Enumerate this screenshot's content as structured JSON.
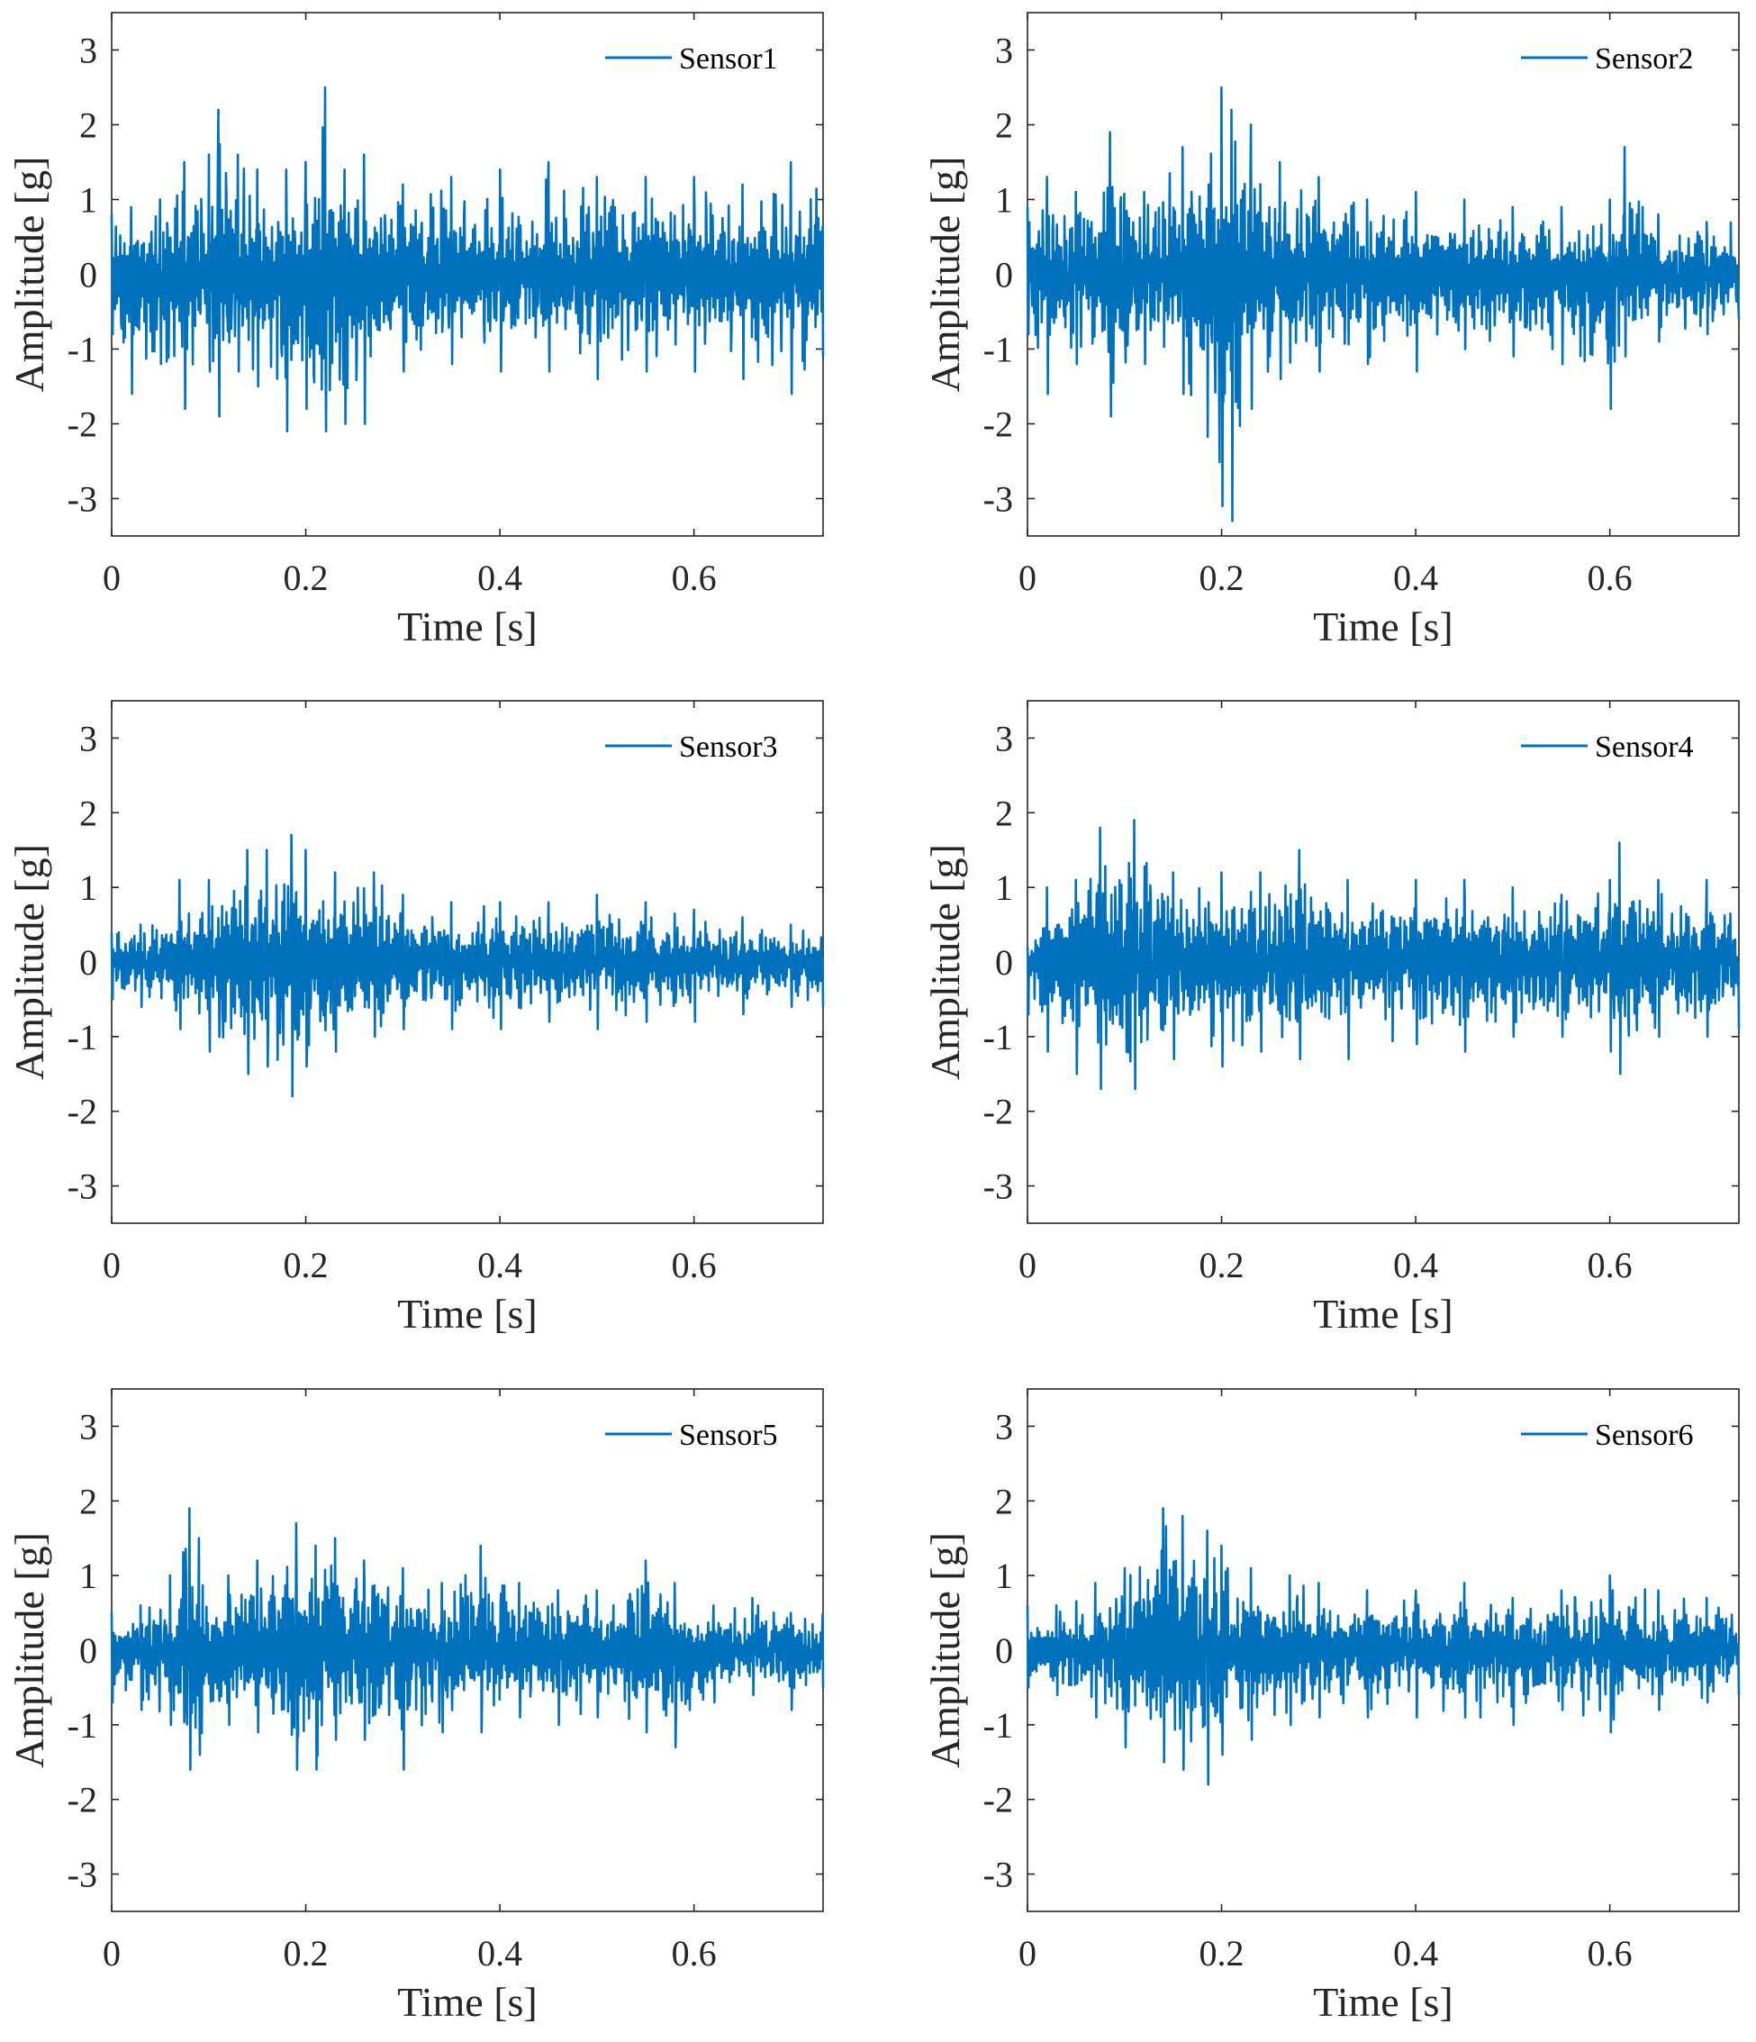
{
  "chart_data": [
    {
      "type": "line",
      "title": "",
      "xlabel": "Time [s]",
      "ylabel": "Amplitude [g]",
      "xlim": [
        0,
        0.733
      ],
      "ylim": [
        -3.5,
        3.5
      ],
      "xticks": [
        "0",
        "0.2",
        "0.4",
        "0.6"
      ],
      "yticks": [
        "3",
        "2",
        "1",
        "0",
        "-1",
        "-2",
        "-3"
      ],
      "legend": "top-right",
      "grid": false,
      "series": [
        {
          "name": "Sensor1",
          "color": "#0072BD",
          "x": [
            0,
            0.02,
            0.05,
            0.075,
            0.1,
            0.11,
            0.13,
            0.15,
            0.18,
            0.2,
            0.22,
            0.24,
            0.26,
            0.3,
            0.35,
            0.4,
            0.45,
            0.5,
            0.55,
            0.6,
            0.65,
            0.7,
            0.733
          ],
          "peak": [
            0.8,
            0.9,
            1.0,
            1.5,
            1.6,
            2.2,
            1.6,
            1.4,
            1.4,
            1.5,
            2.5,
            1.4,
            1.6,
            1.2,
            1.3,
            1.4,
            1.5,
            1.3,
            1.3,
            1.3,
            1.2,
            1.5,
            1.6
          ],
          "trough": [
            -0.8,
            -1.6,
            -1.2,
            -1.8,
            -1.3,
            -1.9,
            -1.3,
            -1.5,
            -2.1,
            -1.8,
            -2.1,
            -2.0,
            -2.0,
            -1.3,
            -1.2,
            -1.3,
            -1.3,
            -1.4,
            -1.3,
            -1.3,
            -1.4,
            -1.6,
            -1.1
          ]
        }
      ]
    },
    {
      "type": "line",
      "title": "",
      "xlabel": "Time [s]",
      "ylabel": "Amplitude [g]",
      "xlim": [
        0,
        0.733
      ],
      "ylim": [
        -3.5,
        3.5
      ],
      "xticks": [
        "0",
        "0.2",
        "0.4",
        "0.6"
      ],
      "yticks": [
        "3",
        "2",
        "1",
        "0",
        "-1",
        "-2",
        "-3"
      ],
      "legend": "top-right",
      "grid": false,
      "series": [
        {
          "name": "Sensor2",
          "color": "#0072BD",
          "x": [
            0,
            0.02,
            0.05,
            0.085,
            0.12,
            0.16,
            0.2,
            0.21,
            0.23,
            0.26,
            0.3,
            0.35,
            0.4,
            0.45,
            0.5,
            0.55,
            0.6,
            0.615,
            0.65,
            0.7,
            0.733
          ],
          "peak": [
            0.9,
            1.3,
            1.1,
            1.9,
            1.1,
            1.7,
            2.5,
            2.2,
            2.0,
            1.5,
            1.3,
            1.0,
            1.1,
            1.0,
            0.9,
            0.9,
            1.0,
            1.7,
            0.8,
            0.7,
            0.8
          ],
          "trough": [
            -0.8,
            -1.6,
            -1.2,
            -1.9,
            -1.2,
            -1.6,
            -3.1,
            -3.3,
            -1.8,
            -1.4,
            -1.3,
            -1.2,
            -1.3,
            -1.0,
            -1.1,
            -1.2,
            -1.8,
            -1.1,
            -0.9,
            -0.8,
            -0.6
          ]
        }
      ]
    },
    {
      "type": "line",
      "title": "",
      "xlabel": "Time [s]",
      "ylabel": "Amplitude [g]",
      "xlim": [
        0,
        0.733
      ],
      "ylim": [
        -3.5,
        3.5
      ],
      "xticks": [
        "0",
        "0.2",
        "0.4",
        "0.6"
      ],
      "yticks": [
        "3",
        "2",
        "1",
        "0",
        "-1",
        "-2",
        "-3"
      ],
      "legend": "top-right",
      "grid": false,
      "series": [
        {
          "name": "Sensor3",
          "color": "#0072BD",
          "x": [
            0,
            0.03,
            0.07,
            0.1,
            0.14,
            0.16,
            0.185,
            0.2,
            0.23,
            0.27,
            0.3,
            0.35,
            0.4,
            0.45,
            0.5,
            0.55,
            0.6,
            0.65,
            0.7,
            0.733
          ],
          "peak": [
            0.4,
            0.5,
            1.1,
            1.1,
            1.5,
            1.5,
            1.7,
            1.5,
            1.2,
            1.2,
            0.9,
            0.8,
            0.8,
            0.8,
            0.9,
            0.8,
            0.7,
            0.6,
            0.5,
            0.5
          ],
          "trough": [
            -0.5,
            -0.6,
            -0.9,
            -1.2,
            -1.5,
            -1.4,
            -1.8,
            -1.4,
            -1.2,
            -1.0,
            -0.9,
            -0.9,
            -0.9,
            -0.8,
            -0.9,
            -0.8,
            -0.8,
            -0.7,
            -0.6,
            -0.6
          ]
        }
      ]
    },
    {
      "type": "line",
      "title": "",
      "xlabel": "Time [s]",
      "ylabel": "Amplitude [g]",
      "xlim": [
        0,
        0.733
      ],
      "ylim": [
        -3.5,
        3.5
      ],
      "xticks": [
        "0",
        "0.2",
        "0.4",
        "0.6"
      ],
      "yticks": [
        "3",
        "2",
        "1",
        "0",
        "-1",
        "-2",
        "-3"
      ],
      "legend": "top-right",
      "grid": false,
      "series": [
        {
          "name": "Sensor4",
          "color": "#0072BD",
          "x": [
            0,
            0.02,
            0.05,
            0.075,
            0.11,
            0.15,
            0.2,
            0.24,
            0.28,
            0.33,
            0.4,
            0.45,
            0.5,
            0.55,
            0.6,
            0.61,
            0.65,
            0.7,
            0.733
          ],
          "peak": [
            0.2,
            1.0,
            1.1,
            1.8,
            1.9,
            1.2,
            1.2,
            1.2,
            1.5,
            1.1,
            1.1,
            1.1,
            1.0,
            0.9,
            1.1,
            1.6,
            1.1,
            1.1,
            1.1
          ],
          "trough": [
            -0.7,
            -1.2,
            -1.5,
            -1.7,
            -1.7,
            -1.3,
            -1.4,
            -1.2,
            -1.3,
            -1.3,
            -1.1,
            -1.2,
            -1.0,
            -1.0,
            -1.2,
            -1.5,
            -1.0,
            -1.0,
            -0.9
          ]
        }
      ]
    },
    {
      "type": "line",
      "title": "",
      "xlabel": "Time [s]",
      "ylabel": "Amplitude [g]",
      "xlim": [
        0,
        0.733
      ],
      "ylim": [
        -3.5,
        3.5
      ],
      "xticks": [
        "0",
        "0.2",
        "0.4",
        "0.6"
      ],
      "yticks": [
        "3",
        "2",
        "1",
        "0",
        "-1",
        "-2",
        "-3"
      ],
      "legend": "top-right",
      "grid": false,
      "series": [
        {
          "name": "Sensor5",
          "color": "#0072BD",
          "x": [
            0,
            0.03,
            0.06,
            0.08,
            0.09,
            0.12,
            0.15,
            0.19,
            0.21,
            0.23,
            0.26,
            0.3,
            0.34,
            0.38,
            0.42,
            0.46,
            0.5,
            0.55,
            0.58,
            0.62,
            0.66,
            0.7,
            0.733
          ],
          "peak": [
            0.5,
            0.6,
            1.0,
            1.9,
            1.5,
            1.0,
            1.2,
            1.7,
            1.4,
            1.5,
            1.2,
            1.1,
            0.9,
            1.4,
            0.9,
            0.8,
            0.8,
            1.2,
            0.9,
            0.6,
            0.7,
            0.5,
            0.6
          ],
          "trough": [
            -0.7,
            -0.8,
            -1.0,
            -1.6,
            -1.4,
            -1.0,
            -1.1,
            -1.6,
            -1.6,
            -1.2,
            -1.2,
            -1.6,
            -1.1,
            -1.1,
            -0.9,
            -1.0,
            -0.9,
            -1.1,
            -1.3,
            -0.7,
            -0.6,
            -0.8,
            -0.5
          ]
        }
      ]
    },
    {
      "type": "line",
      "title": "",
      "xlabel": "Time [s]",
      "ylabel": "Amplitude [g]",
      "xlim": [
        0,
        0.733
      ],
      "ylim": [
        -3.5,
        3.5
      ],
      "xticks": [
        "0",
        "0.2",
        "0.4",
        "0.6"
      ],
      "yticks": [
        "3",
        "2",
        "1",
        "0",
        "-1",
        "-2",
        "-3"
      ],
      "legend": "top-right",
      "grid": false,
      "series": [
        {
          "name": "Sensor6",
          "color": "#0072BD",
          "x": [
            0,
            0.03,
            0.07,
            0.1,
            0.14,
            0.16,
            0.185,
            0.2,
            0.23,
            0.27,
            0.3,
            0.35,
            0.4,
            0.45,
            0.5,
            0.55,
            0.6,
            0.65,
            0.7,
            0.733
          ],
          "peak": [
            0.6,
            0.6,
            0.9,
            1.1,
            1.9,
            1.8,
            1.6,
            1.4,
            1.1,
            1.0,
            0.9,
            0.8,
            0.8,
            0.9,
            0.7,
            0.8,
            1.0,
            0.8,
            0.7,
            0.6
          ],
          "trough": [
            -0.5,
            -0.6,
            -0.9,
            -1.3,
            -1.5,
            -1.6,
            -1.8,
            -1.4,
            -1.2,
            -1.0,
            -0.9,
            -0.9,
            -0.9,
            -0.9,
            -1.0,
            -0.8,
            -1.1,
            -0.8,
            -0.7,
            -0.6
          ]
        }
      ]
    }
  ]
}
